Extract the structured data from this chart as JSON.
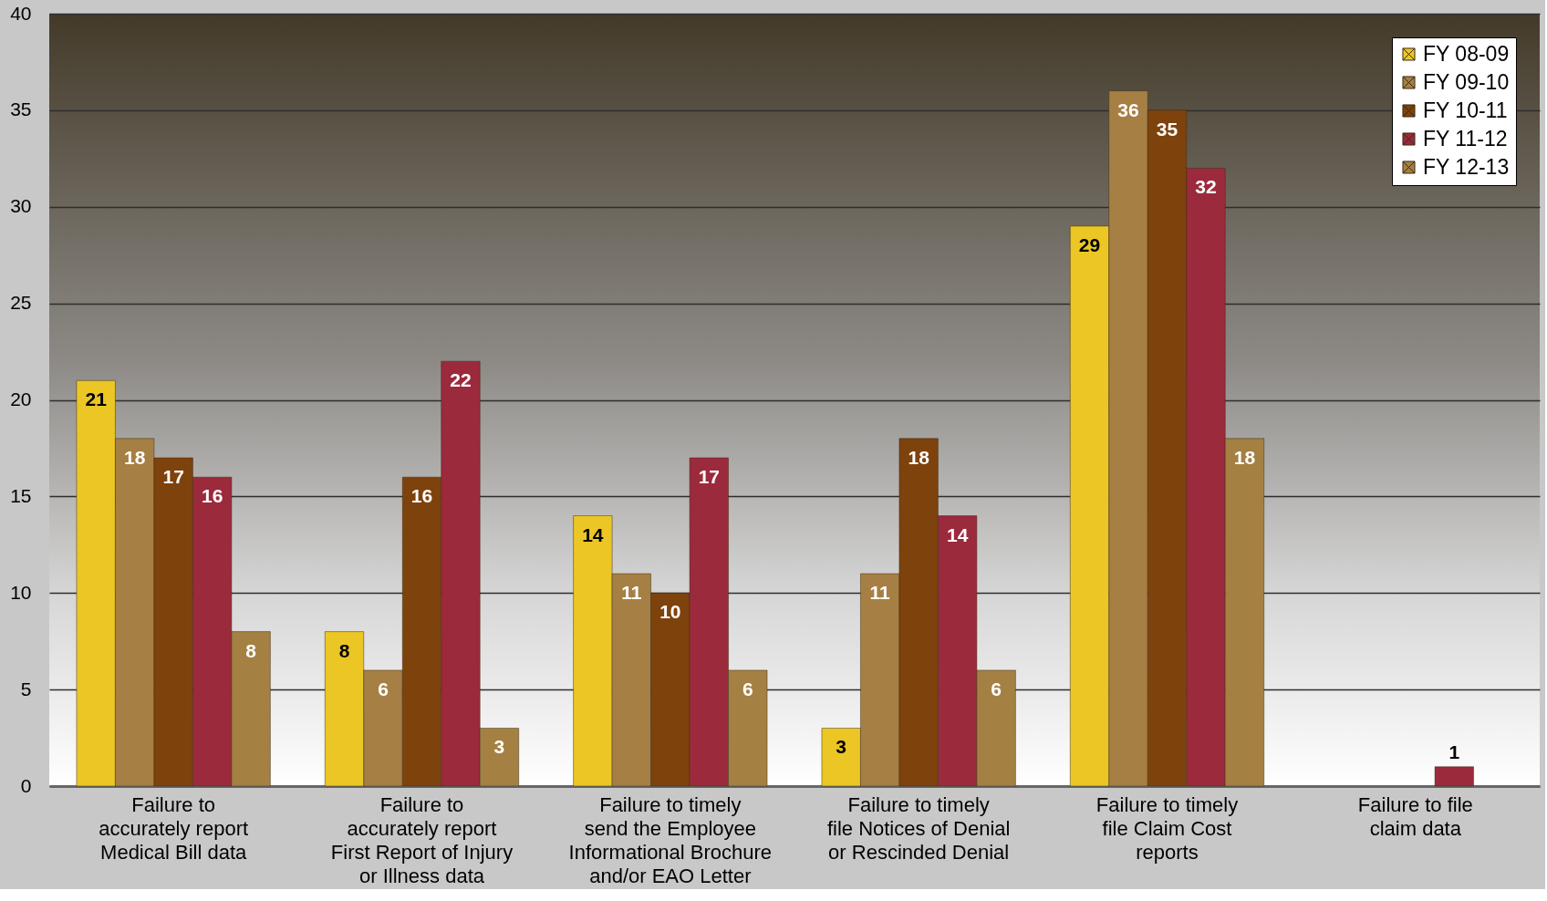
{
  "chart_data": {
    "type": "bar",
    "categories": [
      "Failure to\naccurately report\nMedical Bill data",
      "Failure to\naccurately report\nFirst Report of Injury\nor Illness data",
      "Failure to timely\nsend the Employee\nInformational Brochure\nand/or EAO Letter",
      "Failure to timely\nfile Notices of Denial\nor Rescinded Denial",
      "Failure to timely\nfile Claim Cost\nreports",
      "Failure to file\nclaim data"
    ],
    "series": [
      {
        "name": "FY 08-09",
        "color": "#ebc625",
        "values": [
          21,
          8,
          14,
          3,
          29,
          null
        ]
      },
      {
        "name": "FY 09-10",
        "color": "#a67f44",
        "values": [
          18,
          6,
          11,
          11,
          36,
          null
        ]
      },
      {
        "name": "FY 10-11",
        "color": "#7e420c",
        "values": [
          17,
          16,
          10,
          18,
          35,
          null
        ]
      },
      {
        "name": "FY 11-12",
        "color": "#9b2a3c",
        "values": [
          16,
          22,
          17,
          14,
          32,
          1
        ]
      },
      {
        "name": "FY 12-13",
        "color": "#a58043",
        "values": [
          8,
          3,
          6,
          6,
          18,
          null
        ]
      }
    ],
    "ylim": [
      0,
      40
    ],
    "yticks": [
      0,
      5,
      10,
      15,
      20,
      25,
      30,
      35,
      40
    ],
    "grid": "y",
    "legend": "top right",
    "data_labels": true
  }
}
